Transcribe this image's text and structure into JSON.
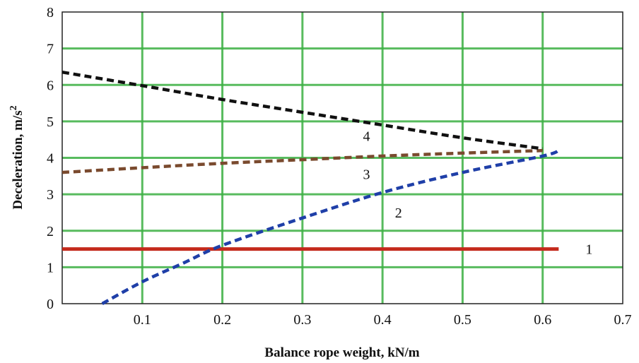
{
  "chart_data": {
    "type": "line",
    "xlabel": "Balance rope weight, kN/m",
    "ylabel": "Deceleration, m/s",
    "ylabel_sup": "2",
    "xlim": [
      0,
      0.7
    ],
    "ylim": [
      0,
      8
    ],
    "x_ticks": [
      "0.1",
      "0.2",
      "0.3",
      "0.4",
      "0.5",
      "0.6",
      "0.7"
    ],
    "y_ticks": [
      "0",
      "1",
      "2",
      "3",
      "4",
      "5",
      "6",
      "7",
      "8"
    ],
    "grid": true,
    "grid_color": "#3cb043",
    "series": [
      {
        "name": "1",
        "color": "#c42a1c",
        "style": "solid",
        "x": [
          0,
          0.62
        ],
        "y": [
          1.5,
          1.5
        ]
      },
      {
        "name": "2",
        "color": "#1f3fa8",
        "style": "dashed",
        "x": [
          0.05,
          0.1,
          0.15,
          0.2,
          0.3,
          0.4,
          0.5,
          0.6,
          0.62
        ],
        "y": [
          0,
          0.6,
          1.1,
          1.6,
          2.35,
          3.05,
          3.6,
          4.05,
          4.2
        ]
      },
      {
        "name": "3",
        "color": "#7a4a2e",
        "style": "dashed",
        "x": [
          0,
          0.1,
          0.2,
          0.3,
          0.4,
          0.5,
          0.6
        ],
        "y": [
          3.6,
          3.73,
          3.85,
          3.95,
          4.05,
          4.13,
          4.2
        ]
      },
      {
        "name": "4",
        "color": "#111111",
        "style": "dashed",
        "x": [
          0,
          0.1,
          0.2,
          0.3,
          0.4,
          0.5,
          0.6
        ],
        "y": [
          6.35,
          5.98,
          5.6,
          5.25,
          4.9,
          4.55,
          4.25
        ]
      }
    ]
  }
}
